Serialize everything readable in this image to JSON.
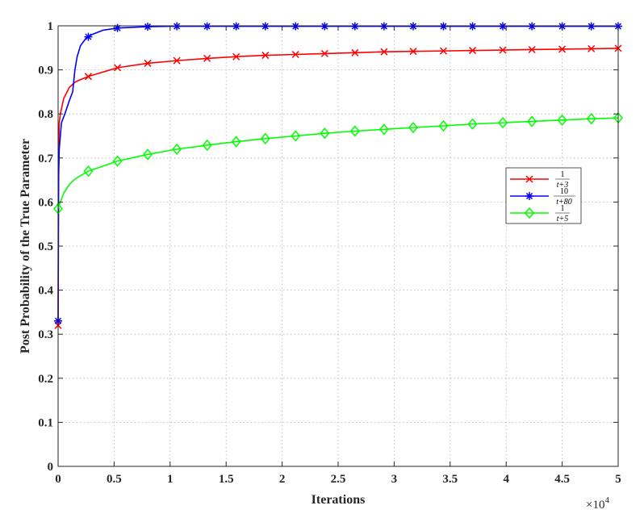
{
  "chart_data": {
    "type": "line",
    "title": "",
    "xlabel": "Iterations",
    "ylabel": "Post Probability of the True Parameter",
    "x_multiplier": "×10",
    "x_multiplier_exp": "4",
    "xlim": [
      0,
      5
    ],
    "ylim": [
      0,
      1
    ],
    "grid": true,
    "legend_position": "right",
    "xticks": [
      "0",
      "0.5",
      "1",
      "1.5",
      "2",
      "2.5",
      "3",
      "3.5",
      "4",
      "4.5",
      "5"
    ],
    "yticks": [
      "0",
      "0.1",
      "0.2",
      "0.3",
      "0.4",
      "0.5",
      "0.6",
      "0.7",
      "0.8",
      "0.9",
      "1"
    ],
    "series": [
      {
        "name_num": "1",
        "name_den": "t+3",
        "color": "#ff0000",
        "marker": "x",
        "x": [
          0,
          0.002,
          0.005,
          0.01,
          0.02,
          0.05,
          0.1,
          0.15,
          0.2,
          0.27,
          0.53,
          0.8,
          1.06,
          1.33,
          1.59,
          1.85,
          2.12,
          2.38,
          2.65,
          2.91,
          3.17,
          3.44,
          3.7,
          3.97,
          4.23,
          4.5,
          4.76,
          5.0
        ],
        "y": [
          0.32,
          0.6,
          0.72,
          0.78,
          0.8,
          0.835,
          0.86,
          0.872,
          0.878,
          0.885,
          0.905,
          0.915,
          0.921,
          0.926,
          0.93,
          0.933,
          0.935,
          0.937,
          0.939,
          0.941,
          0.942,
          0.943,
          0.944,
          0.945,
          0.946,
          0.947,
          0.948,
          0.949
        ],
        "marker_x": [
          0,
          0.27,
          0.53,
          0.8,
          1.06,
          1.33,
          1.59,
          1.85,
          2.12,
          2.38,
          2.65,
          2.91,
          3.17,
          3.44,
          3.7,
          3.97,
          4.23,
          4.5,
          4.76,
          5.0
        ],
        "marker_y": [
          0.32,
          0.885,
          0.905,
          0.915,
          0.921,
          0.926,
          0.93,
          0.933,
          0.935,
          0.937,
          0.939,
          0.941,
          0.942,
          0.943,
          0.944,
          0.945,
          0.946,
          0.947,
          0.948,
          0.949
        ]
      },
      {
        "name_num": "10",
        "name_den": "t+80",
        "color": "#0000ff",
        "marker": "*",
        "x": [
          0,
          0.005,
          0.01,
          0.03,
          0.06,
          0.1,
          0.13,
          0.15,
          0.17,
          0.2,
          0.25,
          0.3,
          0.4,
          0.53,
          0.8,
          1.0,
          5.0
        ],
        "y": [
          0.33,
          0.66,
          0.72,
          0.78,
          0.8,
          0.83,
          0.85,
          0.9,
          0.93,
          0.955,
          0.972,
          0.98,
          0.99,
          0.995,
          0.998,
          0.999,
          0.999
        ],
        "marker_x": [
          0,
          0.27,
          0.53,
          0.8,
          1.06,
          1.33,
          1.59,
          1.85,
          2.12,
          2.38,
          2.65,
          2.91,
          3.17,
          3.44,
          3.7,
          3.97,
          4.23,
          4.5,
          4.76,
          5.0
        ],
        "marker_y": [
          0.33,
          0.975,
          0.995,
          0.998,
          0.999,
          0.999,
          0.999,
          0.999,
          0.999,
          0.999,
          0.999,
          0.999,
          0.999,
          0.999,
          0.999,
          0.999,
          0.999,
          0.999,
          0.999,
          0.999
        ]
      },
      {
        "name_num": "1",
        "name_den": "t+5",
        "color": "#00ff00",
        "marker": "diamond",
        "x": [
          0,
          0.02,
          0.05,
          0.1,
          0.15,
          0.2,
          0.27,
          0.53,
          0.8,
          1.06,
          1.33,
          1.59,
          1.85,
          2.12,
          2.38,
          2.65,
          2.91,
          3.17,
          3.44,
          3.7,
          3.97,
          4.23,
          4.5,
          4.76,
          5.0
        ],
        "y": [
          0.585,
          0.6,
          0.62,
          0.64,
          0.652,
          0.66,
          0.67,
          0.693,
          0.708,
          0.72,
          0.729,
          0.737,
          0.744,
          0.75,
          0.756,
          0.761,
          0.765,
          0.769,
          0.773,
          0.777,
          0.78,
          0.783,
          0.786,
          0.789,
          0.791
        ],
        "marker_x": [
          0,
          0.27,
          0.53,
          0.8,
          1.06,
          1.33,
          1.59,
          1.85,
          2.12,
          2.38,
          2.65,
          2.91,
          3.17,
          3.44,
          3.7,
          3.97,
          4.23,
          4.5,
          4.76,
          5.0
        ],
        "marker_y": [
          0.585,
          0.67,
          0.693,
          0.708,
          0.72,
          0.729,
          0.737,
          0.744,
          0.75,
          0.756,
          0.761,
          0.765,
          0.769,
          0.773,
          0.777,
          0.78,
          0.783,
          0.786,
          0.789,
          0.791
        ]
      }
    ]
  }
}
